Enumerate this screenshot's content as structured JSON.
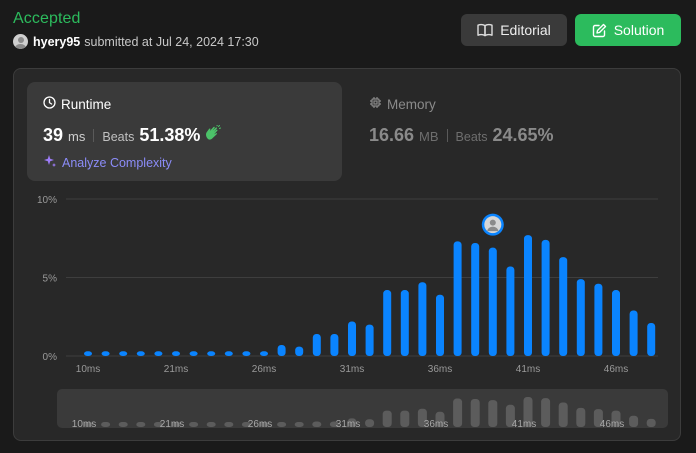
{
  "header": {
    "status": "Accepted",
    "username": "hyery95",
    "submitted_text": "submitted at Jul 24, 2024 17:30"
  },
  "buttons": {
    "editorial": "Editorial",
    "solution": "Solution"
  },
  "runtime": {
    "title": "Runtime",
    "value": "39",
    "unit": "ms",
    "beats_label": "Beats",
    "beats_pct": "51.38%",
    "analyze_label": "Analyze Complexity"
  },
  "memory": {
    "title": "Memory",
    "value": "16.66",
    "unit": "MB",
    "beats_label": "Beats",
    "beats_pct": "24.65%"
  },
  "colors": {
    "accent_green": "#2cbb5d",
    "bar_blue": "#0a84ff",
    "analyze_purple": "#8b8cf8"
  },
  "chart_data": {
    "type": "bar",
    "ylabel": "",
    "xlabel": "",
    "ylim": [
      0,
      10
    ],
    "y_ticks": [
      "10%",
      "5%",
      "0%"
    ],
    "x_tick_labels": [
      "10ms",
      "21ms",
      "26ms",
      "31ms",
      "36ms",
      "41ms",
      "46ms"
    ],
    "x_tick_index": [
      0,
      5,
      10,
      15,
      20,
      25,
      30
    ],
    "highlight_index": 23,
    "series": [
      {
        "values": [
          0.3,
          0.3,
          0.3,
          0.3,
          0.3,
          0.3,
          0.3,
          0.3,
          0.3,
          0.3,
          0.3,
          0.7,
          0.6,
          1.4,
          1.4,
          2.2,
          2.0,
          4.2,
          4.2,
          4.7,
          3.9,
          7.3,
          7.2,
          6.9,
          5.7,
          7.7,
          7.4,
          6.3,
          4.9,
          4.6,
          4.2,
          2.9,
          2.1
        ]
      }
    ],
    "overview_values": [
      0.3,
      0.3,
      0.3,
      0.3,
      0.3,
      0.3,
      0.3,
      0.3,
      0.3,
      0.3,
      0.3,
      0.7,
      0.6,
      1.4,
      1.4,
      2.2,
      2.0,
      4.2,
      4.2,
      4.7,
      3.9,
      7.3,
      7.2,
      6.9,
      5.7,
      7.7,
      7.4,
      6.3,
      4.9,
      4.6,
      4.2,
      2.9,
      2.1
    ]
  }
}
